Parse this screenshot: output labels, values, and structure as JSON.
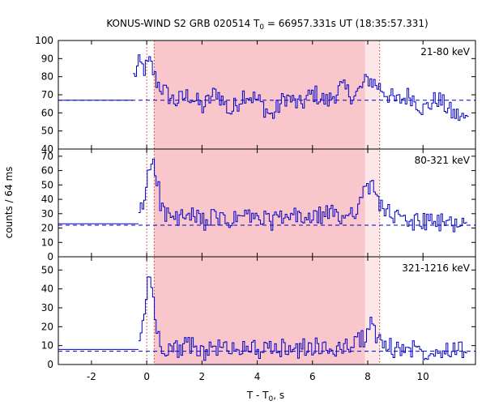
{
  "chart_data": {
    "type": "line",
    "title": "KONUS-WIND S2 GRB 020514 T",
    "title_sub": "0",
    "title_rest": " = 66957.331s UT (18:35:57.331)",
    "xlabel": "T - T",
    "xlabel_sub": "0",
    "xlabel_rest": ", s",
    "ylabel": "counts / 64 ms",
    "xlim": [
      -3.2,
      11.9
    ],
    "x_ticks": [
      -2,
      0,
      2,
      4,
      6,
      8,
      10
    ],
    "dotted_lines_x": [
      0.0,
      0.27,
      8.43
    ],
    "shaded_regions": [
      {
        "x": [
          0.27,
          7.9
        ],
        "color": "#f9c6cc"
      },
      {
        "x": [
          7.9,
          8.43
        ],
        "color": "#fde6e8"
      }
    ],
    "grid": false,
    "line_color": "#0000c8",
    "background_line_color": "#0000c8",
    "bin_width_s": 0.064,
    "panels": [
      {
        "label": "21-80 keV",
        "ylim": [
          40,
          100
        ],
        "y_ticks": [
          40,
          50,
          60,
          70,
          80,
          90,
          100
        ],
        "background_level": 67,
        "pre_burst_level": 67,
        "series": [
          {
            "x": [
              -0.5,
              -0.3,
              -0.1,
              0.1,
              0.3,
              0.6,
              1.0,
              1.5,
              2.0,
              2.5,
              3.0,
              3.5,
              4.0,
              4.5,
              5.0,
              5.5,
              6.0,
              6.5,
              7.0,
              7.5,
              8.0,
              8.5,
              9.0,
              9.5,
              10.0,
              10.5,
              11.0,
              11.6
            ],
            "y": [
              80,
              87,
              84,
              88,
              78,
              72,
              66,
              70,
              63,
              72,
              60,
              71,
              67,
              58,
              69,
              64,
              71,
              66,
              74,
              69,
              79,
              73,
              66,
              70,
              62,
              68,
              60,
              56
            ]
          }
        ]
      },
      {
        "label": "80-321 keV",
        "ylim": [
          0,
          75
        ],
        "y_ticks": [
          0,
          10,
          20,
          30,
          40,
          50,
          60,
          70
        ],
        "background_level": 22,
        "pre_burst_level": 23,
        "series": [
          {
            "x": [
              -0.3,
              -0.1,
              0.0,
              0.1,
              0.2,
              0.3,
              0.45,
              0.6,
              1.0,
              1.5,
              2.0,
              2.5,
              3.0,
              3.5,
              4.0,
              4.5,
              5.0,
              5.5,
              6.0,
              6.5,
              7.0,
              7.5,
              7.9,
              8.1,
              8.3,
              8.6,
              9.0,
              9.5,
              10.0,
              10.5,
              11.0,
              11.6
            ],
            "y": [
              28,
              40,
              55,
              65,
              70,
              60,
              40,
              30,
              26,
              28,
              25,
              27,
              24,
              29,
              26,
              25,
              27,
              28,
              26,
              31,
              27,
              33,
              45,
              50,
              42,
              32,
              27,
              24,
              25,
              23,
              24,
              22
            ]
          }
        ]
      },
      {
        "label": "321-1216 keV",
        "ylim": [
          0,
          57
        ],
        "y_ticks": [
          0,
          10,
          20,
          30,
          40,
          50
        ],
        "background_level": 7,
        "pre_burst_level": 8,
        "series": [
          {
            "x": [
              -0.3,
              -0.1,
              0.0,
              0.1,
              0.2,
              0.3,
              0.45,
              0.6,
              1.0,
              1.5,
              2.0,
              2.5,
              3.0,
              3.5,
              4.0,
              4.5,
              5.0,
              5.5,
              6.0,
              6.5,
              7.0,
              7.5,
              7.9,
              8.05,
              8.2,
              8.5,
              9.0,
              9.5,
              10.0,
              10.5,
              11.0,
              11.6
            ],
            "y": [
              10,
              30,
              42,
              45,
              38,
              20,
              12,
              9,
              8,
              10,
              7,
              9,
              8,
              10,
              8,
              7,
              9,
              8,
              10,
              7,
              9,
              11,
              15,
              22,
              18,
              10,
              8,
              9,
              7,
              8,
              9,
              8
            ]
          }
        ]
      }
    ]
  }
}
